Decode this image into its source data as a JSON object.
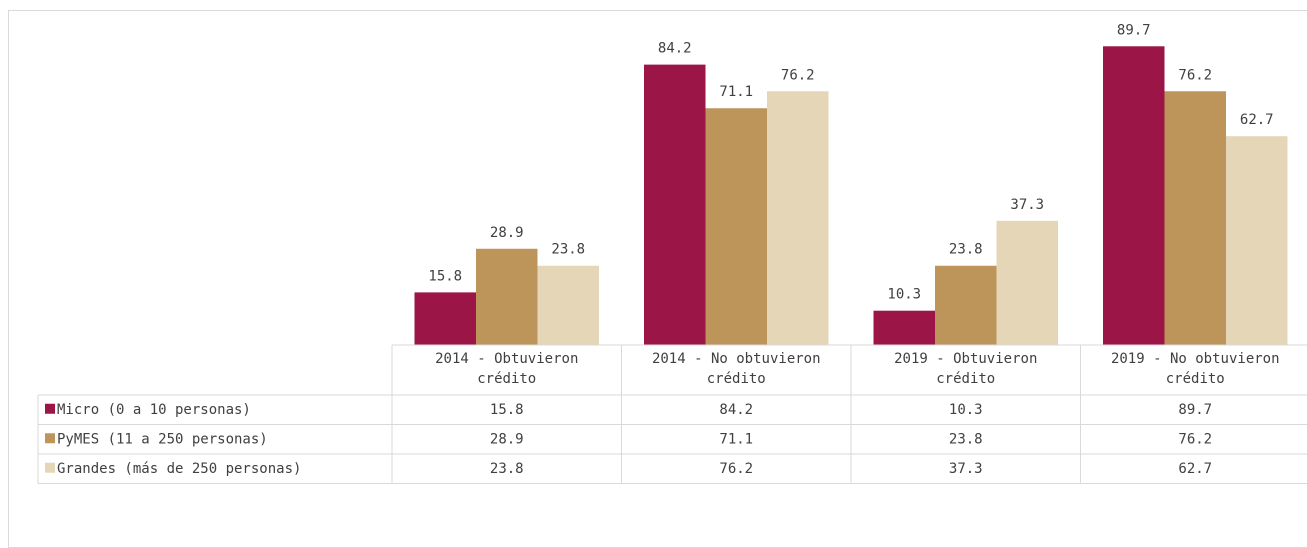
{
  "chart_data": {
    "type": "bar",
    "categories": [
      [
        "2014 - Obtuvieron",
        "crédito"
      ],
      [
        "2014 - No obtuvieron",
        "crédito"
      ],
      [
        "2019 - Obtuvieron",
        "crédito"
      ],
      [
        "2019 - No obtuvieron",
        "crédito"
      ]
    ],
    "series": [
      {
        "name": "Micro (0 a 10 personas)",
        "color": "#9b1547",
        "values": [
          15.8,
          84.2,
          10.3,
          89.7
        ]
      },
      {
        "name": "PyMES (11 a 250 personas)",
        "color": "#bd955a",
        "values": [
          28.9,
          71.1,
          23.8,
          76.2
        ]
      },
      {
        "name": "Grandes (más de 250 personas)",
        "color": "#e5d6b8",
        "values": [
          23.8,
          76.2,
          37.3,
          62.7
        ]
      }
    ],
    "data_table": true,
    "grid": false,
    "legend": "data-table-rows",
    "value_labels": true
  }
}
